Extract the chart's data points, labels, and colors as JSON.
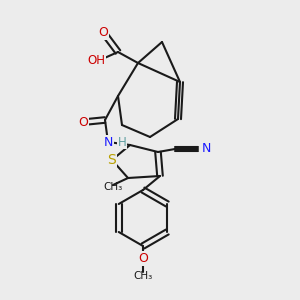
{
  "bg": "#ececec",
  "bond_color": "#1a1a1a",
  "lw": 1.5,
  "figsize": [
    3.0,
    3.0
  ],
  "dpi": 100,
  "xlim": [
    0,
    300
  ],
  "ylim": [
    0,
    300
  ]
}
